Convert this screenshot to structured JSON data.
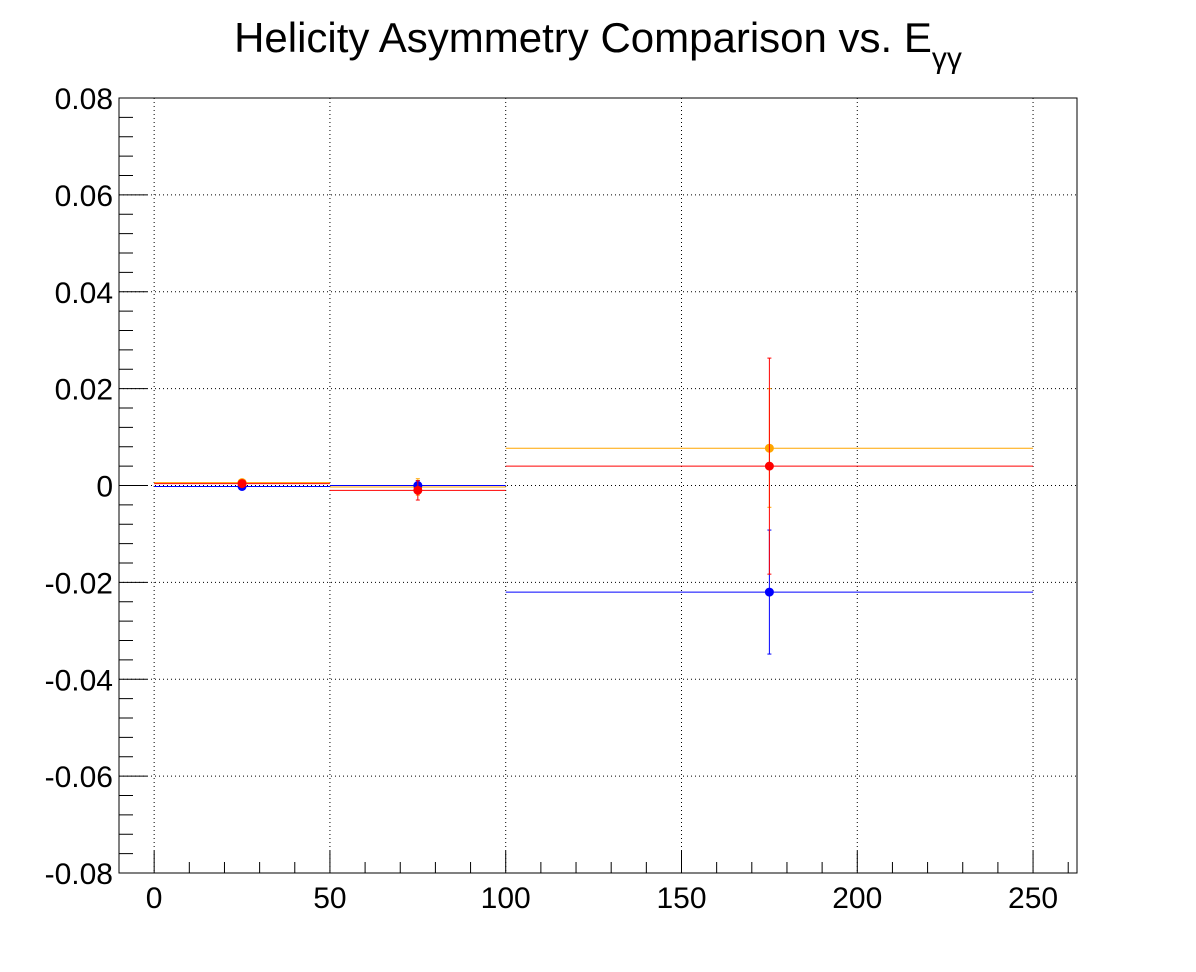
{
  "chart_data": {
    "type": "scatter",
    "title": "Helicity Asymmetry Comparison vs. E",
    "title_subscript": "γγ",
    "xlabel": "",
    "ylabel": "",
    "xlim": [
      -10,
      262.5
    ],
    "ylim": [
      -0.08,
      0.08
    ],
    "grid": true,
    "x_ticks": [
      0,
      50,
      100,
      150,
      200,
      250
    ],
    "x_tick_labels": [
      "0",
      "50",
      "100",
      "150",
      "200",
      "250"
    ],
    "y_ticks": [
      -0.08,
      -0.06,
      -0.04,
      -0.02,
      0,
      0.02,
      0.04,
      0.06,
      0.08
    ],
    "y_tick_labels": [
      "-0.08",
      "-0.06",
      "-0.04",
      "-0.02",
      "0",
      "0.02",
      "0.04",
      "0.06",
      "0.08"
    ],
    "series": [
      {
        "color": "#ffa500",
        "points": [
          {
            "x": 25,
            "xlow": 0,
            "xhigh": 50,
            "y": 0.0006,
            "ylow": 0.0001,
            "yhigh": 0.0011
          },
          {
            "x": 75,
            "xlow": 50,
            "xhigh": 100,
            "y": -0.0003,
            "ylow": -0.002,
            "yhigh": 0.0014
          },
          {
            "x": 175,
            "xlow": 100,
            "xhigh": 250,
            "y": 0.0077,
            "ylow": -0.0045,
            "yhigh": 0.02
          }
        ]
      },
      {
        "color": "#0000ff",
        "points": [
          {
            "x": 25,
            "xlow": 0,
            "xhigh": 50,
            "y": -0.0002,
            "ylow": -0.0007,
            "yhigh": 0.0003
          },
          {
            "x": 75,
            "xlow": 50,
            "xhigh": 100,
            "y": 0.0,
            "ylow": -0.001,
            "yhigh": 0.001
          },
          {
            "x": 175,
            "xlow": 100,
            "xhigh": 250,
            "y": -0.022,
            "ylow": -0.0348,
            "yhigh": -0.0092
          }
        ]
      },
      {
        "color": "#ff0000",
        "points": [
          {
            "x": 25,
            "xlow": 0,
            "xhigh": 50,
            "y": 0.0004,
            "ylow": -0.0001,
            "yhigh": 0.0009
          },
          {
            "x": 75,
            "xlow": 50,
            "xhigh": 100,
            "y": -0.001,
            "ylow": -0.003,
            "yhigh": 0.001
          },
          {
            "x": 175,
            "xlow": 100,
            "xhigh": 250,
            "y": 0.004,
            "ylow": -0.0183,
            "yhigh": 0.0263
          }
        ]
      }
    ]
  }
}
